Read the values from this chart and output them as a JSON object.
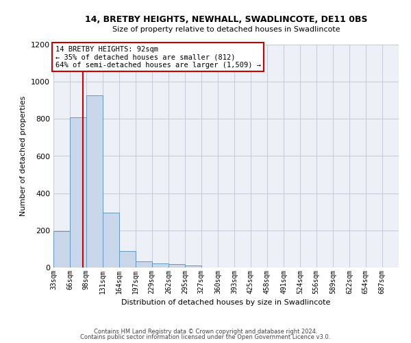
{
  "title1": "14, BRETBY HEIGHTS, NEWHALL, SWADLINCOTE, DE11 0BS",
  "title2": "Size of property relative to detached houses in Swadlincote",
  "xlabel": "Distribution of detached houses by size in Swadlincote",
  "ylabel": "Number of detached properties",
  "footer1": "Contains HM Land Registry data © Crown copyright and database right 2024.",
  "footer2": "Contains public sector information licensed under the Open Government Licence v3.0.",
  "bar_color": "#c8d8ea",
  "bar_edge_color": "#6699bb",
  "grid_color": "#c8ccd8",
  "bg_color": "#edf1f7",
  "annotation_line1": "14 BRETBY HEIGHTS: 92sqm",
  "annotation_line2": "← 35% of detached houses are smaller (812)",
  "annotation_line3": "64% of semi-detached houses are larger (1,509) →",
  "property_size_sqm": 92,
  "red_line_color": "#cc0000",
  "categories": [
    "33sqm",
    "66sqm",
    "98sqm",
    "131sqm",
    "164sqm",
    "197sqm",
    "229sqm",
    "262sqm",
    "295sqm",
    "327sqm",
    "360sqm",
    "393sqm",
    "425sqm",
    "458sqm",
    "491sqm",
    "524sqm",
    "556sqm",
    "589sqm",
    "622sqm",
    "654sqm",
    "687sqm"
  ],
  "bin_lefts": [
    33,
    66,
    98,
    131,
    164,
    197,
    229,
    262,
    295,
    327,
    360,
    393,
    425,
    458,
    491,
    524,
    556,
    589,
    622,
    654,
    687
  ],
  "bin_width": 33,
  "values": [
    195,
    810,
    925,
    295,
    88,
    35,
    22,
    18,
    12,
    0,
    0,
    0,
    0,
    0,
    0,
    0,
    0,
    0,
    0,
    0,
    0
  ],
  "xlim_left": 33,
  "xlim_right": 720,
  "ylim": [
    0,
    1200
  ],
  "yticks": [
    0,
    200,
    400,
    600,
    800,
    1000,
    1200
  ]
}
